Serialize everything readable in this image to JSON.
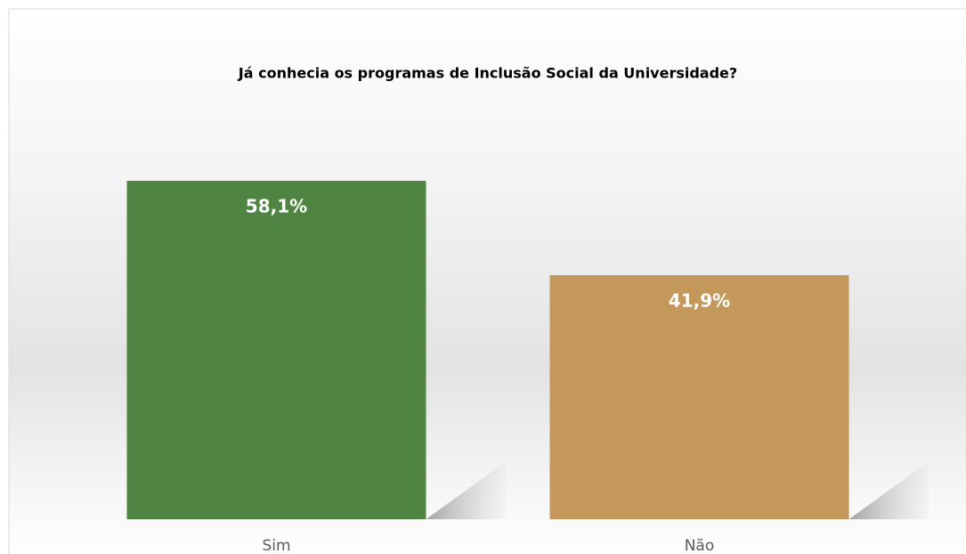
{
  "chart_data": {
    "type": "bar",
    "title": "Já conhecia os programas de Inclusão Social da Universidade?",
    "categories": [
      "Sim",
      "Não"
    ],
    "values": [
      58.1,
      41.9
    ],
    "value_labels": [
      "58,1%",
      "41,9%"
    ],
    "colors": [
      "#4f8442",
      "#c4975a"
    ]
  }
}
